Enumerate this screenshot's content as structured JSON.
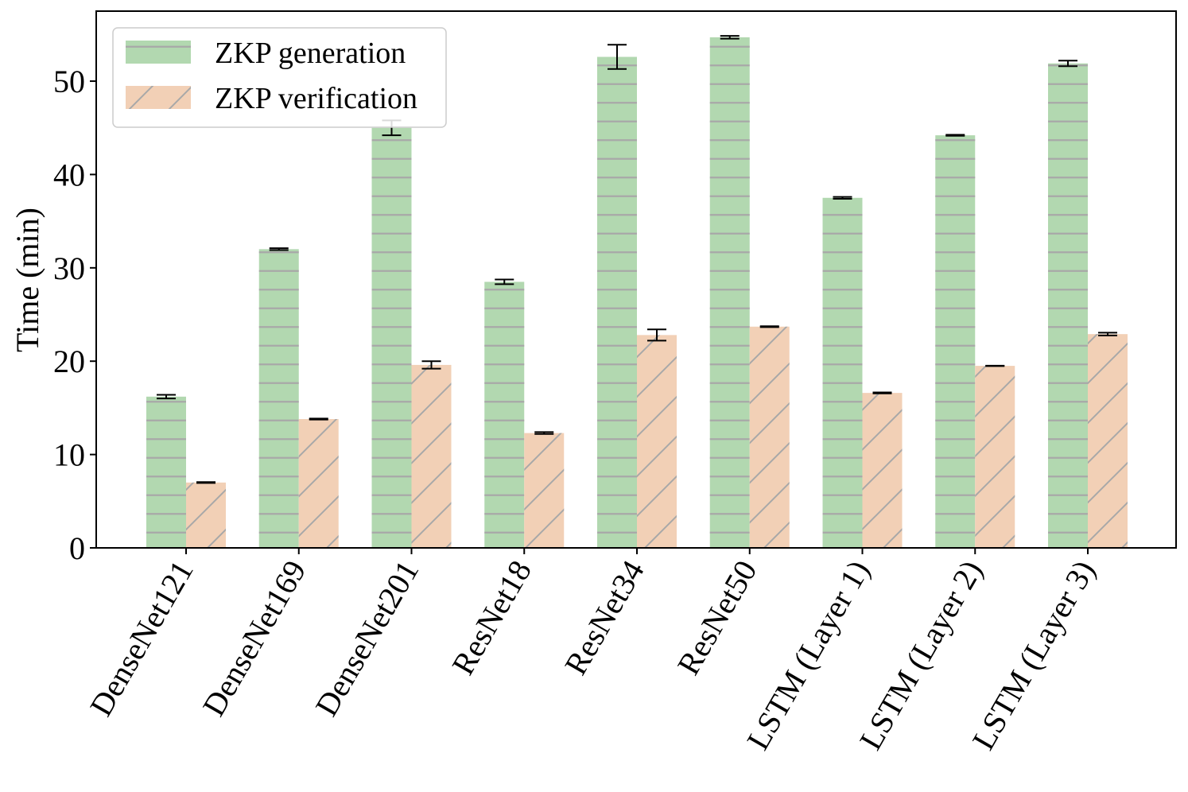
{
  "chart_data": {
    "type": "bar",
    "title": "",
    "xlabel": "",
    "ylabel": "Time (min)",
    "ylim": [
      0,
      57.5
    ],
    "yticks": [
      0,
      10,
      20,
      30,
      40,
      50
    ],
    "grid": false,
    "legend_position": "top-left",
    "categories": [
      "DenseNet121",
      "DenseNet169",
      "DenseNet201",
      "ResNet18",
      "ResNet34",
      "ResNet50",
      "LSTM (Layer 1)",
      "LSTM (Layer 2)",
      "LSTM (Layer 3)"
    ],
    "series": [
      {
        "name": "ZKP generation",
        "color": "#b2d8b0",
        "hatch_color": "#a8a8a8",
        "hatch": "horizontal",
        "values": [
          16.2,
          32.0,
          45.0,
          28.5,
          52.6,
          54.7,
          37.5,
          44.2,
          51.9
        ],
        "errors": [
          0.2,
          0.1,
          0.8,
          0.25,
          1.3,
          0.15,
          0.1,
          0.05,
          0.3
        ]
      },
      {
        "name": "ZKP verification",
        "color": "#f2d0b6",
        "hatch_color": "#a8a8a8",
        "hatch": "diagonal",
        "values": [
          7.0,
          13.8,
          19.6,
          12.3,
          22.8,
          23.7,
          16.6,
          19.5,
          22.9
        ],
        "errors": [
          0.05,
          0.05,
          0.4,
          0.1,
          0.6,
          0.05,
          0.05,
          0.02,
          0.15
        ]
      }
    ]
  }
}
